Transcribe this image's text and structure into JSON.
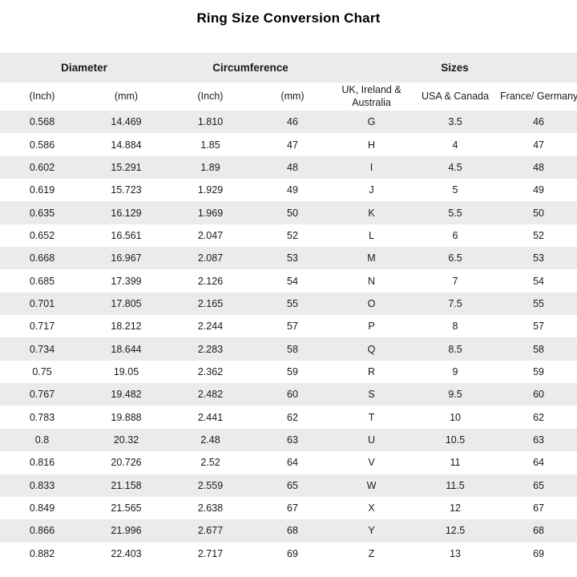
{
  "title": "Ring Size Conversion Chart",
  "colors": {
    "stripe": "#ebebeb",
    "text": "#1a1a1a",
    "title": "#000000",
    "background": "#ffffff"
  },
  "chart_data": {
    "type": "table",
    "title": "Ring Size Conversion Chart",
    "group_headers": [
      {
        "label": "Diameter",
        "colspan": 2
      },
      {
        "label": "Circumference",
        "colspan": 2
      },
      {
        "label": "Sizes",
        "colspan": 3
      }
    ],
    "columns": [
      "(Inch)",
      "(mm)",
      "(Inch)",
      "(mm)",
      "UK, Ireland & Australia",
      "USA & Canada",
      "France/ Germany"
    ],
    "column_groups": [
      "Diameter",
      "Diameter",
      "Circumference",
      "Circumference",
      "Sizes",
      "Sizes",
      "Sizes"
    ],
    "rows": [
      [
        "0.568",
        "14.469",
        "1.810",
        "46",
        "G",
        "3.5",
        "46"
      ],
      [
        "0.586",
        "14.884",
        "1.85",
        "47",
        "H",
        "4",
        "47"
      ],
      [
        "0.602",
        "15.291",
        "1.89",
        "48",
        "I",
        "4.5",
        "48"
      ],
      [
        "0.619",
        "15.723",
        "1.929",
        "49",
        "J",
        "5",
        "49"
      ],
      [
        "0.635",
        "16.129",
        "1.969",
        "50",
        "K",
        "5.5",
        "50"
      ],
      [
        "0.652",
        "16.561",
        "2.047",
        "52",
        "L",
        "6",
        "52"
      ],
      [
        "0.668",
        "16.967",
        "2.087",
        "53",
        "M",
        "6.5",
        "53"
      ],
      [
        "0.685",
        "17.399",
        "2.126",
        "54",
        "N",
        "7",
        "54"
      ],
      [
        "0.701",
        "17.805",
        "2.165",
        "55",
        "O",
        "7.5",
        "55"
      ],
      [
        "0.717",
        "18.212",
        "2.244",
        "57",
        "P",
        "8",
        "57"
      ],
      [
        "0.734",
        "18.644",
        "2.283",
        "58",
        "Q",
        "8.5",
        "58"
      ],
      [
        "0.75",
        "19.05",
        "2.362",
        "59",
        "R",
        "9",
        "59"
      ],
      [
        "0.767",
        "19.482",
        "2.482",
        "60",
        "S",
        "9.5",
        "60"
      ],
      [
        "0.783",
        "19.888",
        "2.441",
        "62",
        "T",
        "10",
        "62"
      ],
      [
        "0.8",
        "20.32",
        "2.48",
        "63",
        "U",
        "10.5",
        "63"
      ],
      [
        "0.816",
        "20.726",
        "2.52",
        "64",
        "V",
        "11",
        "64"
      ],
      [
        "0.833",
        "21.158",
        "2.559",
        "65",
        "W",
        "11.5",
        "65"
      ],
      [
        "0.849",
        "21.565",
        "2.638",
        "67",
        "X",
        "12",
        "67"
      ],
      [
        "0.866",
        "21.996",
        "2.677",
        "68",
        "Y",
        "12.5",
        "68"
      ],
      [
        "0.882",
        "22.403",
        "2.717",
        "69",
        "Z",
        "13",
        "69"
      ]
    ]
  }
}
